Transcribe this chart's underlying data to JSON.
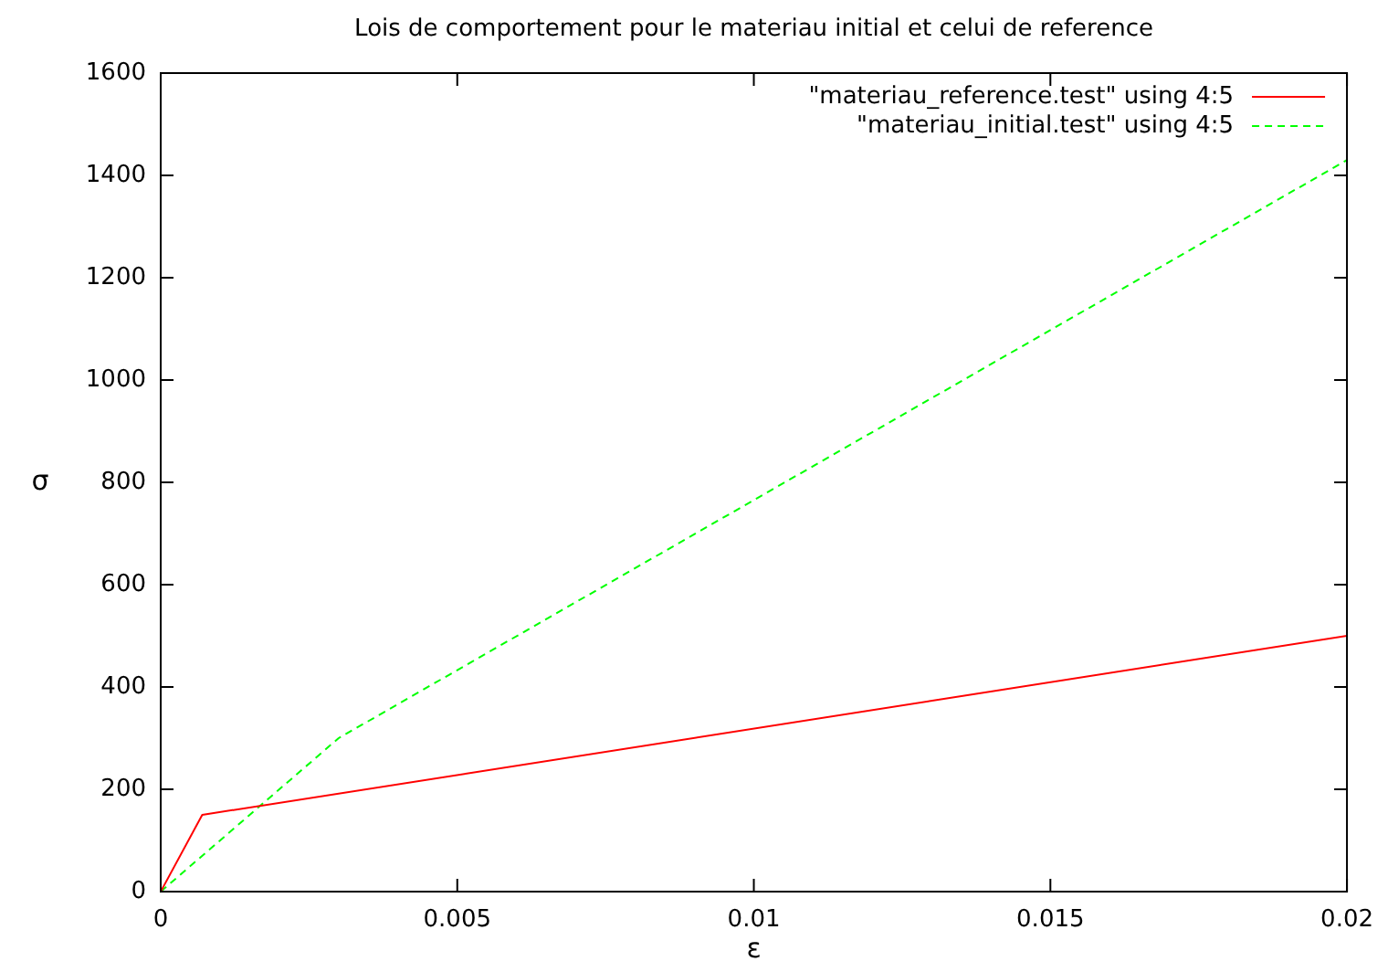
{
  "chart_data": {
    "type": "line",
    "title": "Lois de comportement pour le materiau initial et celui de reference",
    "xlabel": "ε",
    "ylabel": "σ",
    "xlim": [
      0,
      0.02
    ],
    "xticks": [
      0,
      0.005,
      0.01,
      0.015,
      0.02
    ],
    "ylim": [
      0,
      1600
    ],
    "yticks": [
      0,
      200,
      400,
      600,
      800,
      1000,
      1200,
      1400,
      1600
    ],
    "grid": false,
    "legend": "top right",
    "marker": "none",
    "series": [
      {
        "name": "\"materiau_reference.test\" using 4:5",
        "color": "#ff0000",
        "line_style": "solid",
        "x": [
          0,
          0.0007,
          0.02
        ],
        "values": [
          0,
          150,
          500
        ]
      },
      {
        "name": "\"materiau_initial.test\" using 4:5",
        "color": "#00ff00",
        "line_style": "dashed",
        "x": [
          0,
          0.003,
          0.02
        ],
        "values": [
          0,
          300,
          1430
        ]
      }
    ]
  }
}
